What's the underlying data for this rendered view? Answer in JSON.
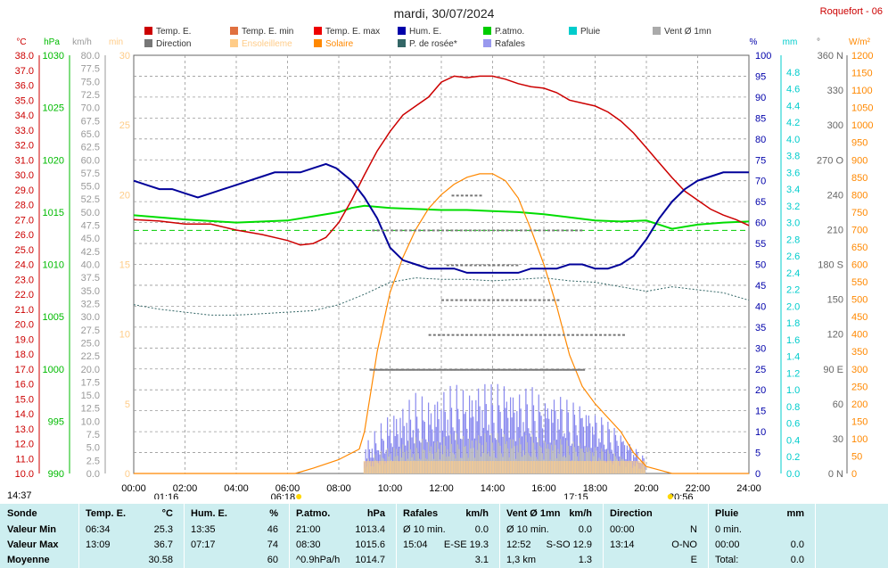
{
  "header": {
    "title": "mardi, 30/07/2024",
    "station": "Roquefort - 06"
  },
  "legend": [
    {
      "label": "Temp. E.",
      "color": "#cc0000"
    },
    {
      "label": "Temp. E. min",
      "color": "#e07040"
    },
    {
      "label": "Temp. E. max",
      "color": "#ee0000"
    },
    {
      "label": "Hum. E.",
      "color": "#0000aa"
    },
    {
      "label": "P.atmo.",
      "color": "#00cc00"
    },
    {
      "label": "Pluie",
      "color": "#00cccc"
    },
    {
      "label": "Vent Ø 1mn",
      "color": "#aaaaaa"
    },
    {
      "label": "Direction",
      "color": "#777777"
    },
    {
      "label": "Ensoleilleme",
      "color": "#ffcc88"
    },
    {
      "label": "Solaire",
      "color": "#ff8800"
    },
    {
      "label": "P. de rosée*",
      "color": "#336666"
    },
    {
      "label": "Rafales",
      "color": "#9999ee"
    }
  ],
  "axis_units": {
    "temp": "°C",
    "press": "hPa",
    "wind": "km/h",
    "sun": "min",
    "hum": "%",
    "rain": "mm",
    "dir": "°",
    "solar": "W/m²"
  },
  "time_labels": {
    "left_time": "14:37",
    "sunrise": "06:18",
    "sunset": "20:56",
    "moonrise": "01:16",
    "moonset": "17:15"
  },
  "chart_data": {
    "type": "line",
    "x_ticks": [
      "00:00",
      "02:00",
      "04:00",
      "06:00",
      "08:00",
      "10:00",
      "12:00",
      "14:00",
      "16:00",
      "18:00",
      "20:00",
      "22:00",
      "24:00"
    ],
    "temp_axis": {
      "range": [
        10.0,
        38.0
      ],
      "ticks": [
        "38.0",
        "37.0",
        "36.0",
        "35.0",
        "34.0",
        "33.0",
        "32.0",
        "31.0",
        "30.0",
        "29.0",
        "28.0",
        "27.0",
        "26.0",
        "25.0",
        "24.0",
        "23.0",
        "22.0",
        "21.0",
        "20.0",
        "19.0",
        "18.0",
        "17.0",
        "16.0",
        "15.0",
        "14.0",
        "13.0",
        "12.0",
        "11.0",
        "10.0"
      ]
    },
    "pressure_axis": {
      "range": [
        990,
        1030
      ],
      "ticks": [
        "1030",
        "1025",
        "1020",
        "1015",
        "1010",
        "1005",
        "1000",
        "995",
        "990"
      ]
    },
    "wind_axis": {
      "range": [
        0,
        80
      ],
      "ticks": [
        "80.0",
        "77.5",
        "75.0",
        "72.5",
        "70.0",
        "67.5",
        "65.0",
        "62.5",
        "60.0",
        "57.5",
        "55.0",
        "52.5",
        "50.0",
        "47.5",
        "45.0",
        "42.5",
        "40.0",
        "37.5",
        "35.0",
        "32.5",
        "30.0",
        "27.5",
        "25.0",
        "22.5",
        "20.0",
        "17.5",
        "15.0",
        "12.5",
        "10.0",
        "7.5",
        "5.0",
        "2.5",
        "0.0"
      ]
    },
    "sun_axis": {
      "range": [
        0,
        30
      ],
      "ticks": [
        "30",
        "25",
        "20",
        "15",
        "10",
        "5",
        "0"
      ]
    },
    "hum_axis": {
      "range": [
        0,
        100
      ],
      "ticks": [
        "100",
        "95",
        "90",
        "85",
        "80",
        "75",
        "70",
        "65",
        "60",
        "55",
        "50",
        "45",
        "40",
        "35",
        "30",
        "25",
        "20",
        "15",
        "10",
        "5",
        "0"
      ]
    },
    "rain_axis": {
      "range": [
        0,
        5.0
      ],
      "ticks": [
        "4.8",
        "4.6",
        "4.4",
        "4.2",
        "4.0",
        "3.8",
        "3.6",
        "3.4",
        "3.2",
        "3.0",
        "2.8",
        "2.6",
        "2.4",
        "2.2",
        "2.0",
        "1.8",
        "1.6",
        "1.4",
        "1.2",
        "1.0",
        "0.8",
        "0.6",
        "0.4",
        "0.2",
        "0.0"
      ]
    },
    "dir_axis": {
      "range": [
        0,
        360
      ],
      "ticks": [
        "360 N",
        "330",
        "300",
        "270 O",
        "240",
        "210",
        "180 S",
        "150",
        "120",
        "90 E",
        "60",
        "30",
        "0 N"
      ]
    },
    "solar_axis": {
      "range": [
        0,
        1200
      ],
      "ticks": [
        "1200",
        "1150",
        "1100",
        "1050",
        "1000",
        "950",
        "900",
        "850",
        "800",
        "750",
        "700",
        "650",
        "600",
        "550",
        "500",
        "450",
        "400",
        "350",
        "300",
        "250",
        "200",
        "150",
        "100",
        "50",
        "0"
      ]
    },
    "series": [
      {
        "name": "Temp. E.",
        "unit": "°C",
        "x": [
          0,
          1,
          2,
          3,
          4,
          5,
          6,
          6.5,
          7,
          7.5,
          8,
          8.5,
          9,
          9.5,
          10,
          10.5,
          11,
          11.5,
          12,
          12.5,
          13,
          13.5,
          14,
          14.5,
          15,
          15.5,
          16,
          16.5,
          17,
          17.5,
          18,
          18.5,
          19,
          19.5,
          20,
          20.5,
          21,
          21.5,
          22,
          22.5,
          23,
          23.5,
          24
        ],
        "y": [
          27.0,
          26.9,
          26.7,
          26.7,
          26.3,
          26.0,
          25.6,
          25.3,
          25.4,
          25.8,
          26.8,
          28.3,
          30.0,
          31.6,
          32.9,
          34.0,
          34.6,
          35.2,
          36.2,
          36.6,
          36.5,
          36.6,
          36.6,
          36.4,
          36.1,
          35.9,
          35.8,
          35.5,
          35.0,
          34.8,
          34.6,
          34.2,
          33.6,
          32.8,
          31.8,
          30.8,
          29.8,
          28.9,
          28.3,
          27.7,
          27.3,
          27.0,
          26.6
        ]
      },
      {
        "name": "Hum. E.",
        "unit": "%",
        "x": [
          0,
          0.5,
          1,
          1.5,
          2,
          2.5,
          3,
          3.5,
          4,
          4.5,
          5,
          5.5,
          6,
          6.5,
          7,
          7.5,
          7.9,
          8.5,
          9,
          9.5,
          10,
          10.5,
          11,
          11.5,
          12,
          12.5,
          13,
          13.5,
          14,
          14.5,
          15,
          15.5,
          16,
          16.5,
          17,
          17.5,
          18,
          18.5,
          19,
          19.5,
          20,
          20.5,
          21,
          21.5,
          22,
          22.5,
          23,
          23.5,
          24
        ],
        "y": [
          70,
          69,
          68,
          68,
          67,
          66,
          67,
          68,
          69,
          70,
          71,
          72,
          72,
          72,
          73,
          74,
          73,
          70,
          66,
          61,
          54,
          51,
          50,
          49,
          49,
          49,
          48,
          48,
          48,
          48,
          48,
          49,
          49,
          49,
          50,
          50,
          49,
          49,
          50,
          52,
          56,
          61,
          65,
          68,
          70,
          71,
          72,
          72,
          72
        ]
      },
      {
        "name": "P.atmo.",
        "unit": "hPa",
        "x": [
          0,
          2,
          4,
          6,
          7,
          8,
          8.5,
          9,
          10,
          11,
          12,
          13,
          14,
          15,
          16,
          17,
          18,
          19,
          20,
          20.5,
          21,
          22,
          23,
          24
        ],
        "y": [
          1014.7,
          1014.3,
          1014.0,
          1014.2,
          1014.6,
          1015.0,
          1015.4,
          1015.6,
          1015.4,
          1015.3,
          1015.2,
          1015.2,
          1015.1,
          1015.0,
          1014.8,
          1014.5,
          1014.2,
          1014.1,
          1014.2,
          1013.8,
          1013.4,
          1013.8,
          1014.0,
          1014.1
        ]
      },
      {
        "name": "P. de rosée*",
        "unit": "°C",
        "x": [
          0,
          1,
          2,
          3,
          4,
          5,
          6,
          7,
          8,
          9,
          10,
          11,
          12,
          13,
          14,
          15,
          16,
          17,
          18,
          19,
          20,
          21,
          22,
          23,
          24
        ],
        "y": [
          21.3,
          21.0,
          20.8,
          20.6,
          20.6,
          20.7,
          20.8,
          20.9,
          21.3,
          22.0,
          22.8,
          23.1,
          23.0,
          23.0,
          22.9,
          23.0,
          23.1,
          22.9,
          22.8,
          22.5,
          22.2,
          22.5,
          22.3,
          22.1,
          21.6
        ]
      },
      {
        "name": "Solaire",
        "unit": "W/m²",
        "x": [
          0,
          6.3,
          7,
          8,
          8.8,
          9,
          9.5,
          10,
          10.5,
          11,
          11.5,
          12,
          12.5,
          13,
          13.5,
          14,
          14.5,
          15,
          15.5,
          16,
          16.5,
          17,
          17.5,
          18,
          18.5,
          19,
          19.5,
          20,
          20.5,
          21,
          24
        ],
        "y": [
          0,
          0,
          15,
          40,
          70,
          120,
          350,
          520,
          620,
          700,
          760,
          800,
          830,
          850,
          860,
          860,
          840,
          790,
          700,
          600,
          480,
          340,
          250,
          200,
          160,
          120,
          60,
          20,
          10,
          0,
          0
        ]
      },
      {
        "name": "Rafales",
        "unit": "km/h",
        "x": [
          9.0,
          9.5,
          10,
          10.5,
          11,
          11.5,
          12,
          12.5,
          13,
          13.5,
          14,
          14.5,
          15,
          15.5,
          16,
          16.5,
          17,
          17.5,
          18,
          18.5,
          19,
          19.5,
          20
        ],
        "y": [
          6,
          9,
          12,
          14,
          16,
          15,
          17,
          18,
          17,
          19,
          18,
          19,
          17,
          18,
          16,
          17,
          15,
          15,
          13,
          11,
          9,
          6,
          3
        ]
      }
    ]
  },
  "summary": {
    "columns": [
      {
        "title": "Sonde",
        "unit": "",
        "rows": [
          "Valeur Min",
          "Valeur Max",
          "Moyenne"
        ]
      },
      {
        "title": "Temp. E.",
        "unit": "°C",
        "rows": [
          [
            "06:34",
            "25.3"
          ],
          [
            "13:09",
            "36.7"
          ],
          [
            "",
            "30.58"
          ]
        ]
      },
      {
        "title": "Hum. E.",
        "unit": "%",
        "rows": [
          [
            "13:35",
            "46"
          ],
          [
            "07:17",
            "74"
          ],
          [
            "",
            "60"
          ]
        ]
      },
      {
        "title": "P.atmo.",
        "unit": "hPa",
        "rows": [
          [
            "21:00",
            "1013.4"
          ],
          [
            "08:30",
            "1015.6"
          ],
          [
            "^0.9hPa/h",
            "1014.7"
          ]
        ]
      },
      {
        "title": "Rafales",
        "unit": "km/h",
        "rows": [
          [
            "Ø 10 min.",
            "0.0"
          ],
          [
            "15:04",
            "E-SE 19.3"
          ],
          [
            "",
            "3.1"
          ]
        ]
      },
      {
        "title": "Vent Ø 1mn",
        "unit": "km/h",
        "rows": [
          [
            "Ø 10 min.",
            "0.0"
          ],
          [
            "12:52",
            "S-SO 12.9"
          ],
          [
            "1,3 km",
            "1.3"
          ]
        ]
      },
      {
        "title": "Direction",
        "unit": "",
        "rows": [
          [
            "00:00",
            "N"
          ],
          [
            "13:14",
            "O-NO"
          ],
          [
            "",
            "E"
          ]
        ]
      },
      {
        "title": "Pluie",
        "unit": "mm",
        "rows": [
          [
            "0 min.",
            ""
          ],
          [
            "00:00",
            "0.0"
          ],
          [
            "Total:",
            "0.0"
          ]
        ]
      }
    ]
  }
}
